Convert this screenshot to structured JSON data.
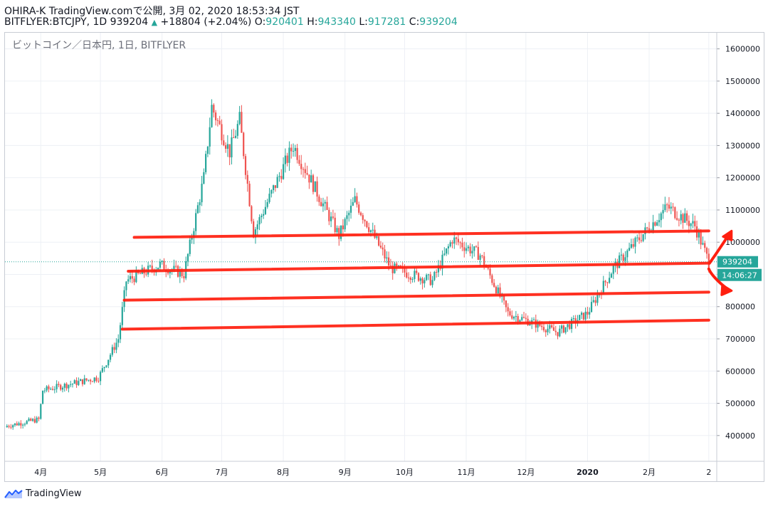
{
  "header": {
    "line1": "OHIRA-K TradingView.comで公開, 3月 02, 2020 18:53:34 JST",
    "symbol_prefix": "BITFLYER:BTCJPY, 1D 939204",
    "change_arrow": "▲",
    "change": "+18804 (+2.04%)",
    "o_label": "O:",
    "o_value": "920401",
    "h_label": "H:",
    "h_value": "943340",
    "l_label": "L:",
    "l_value": "917281",
    "c_label": "C:",
    "c_value": "939204"
  },
  "chart_title": "ビットコイン／日本円, 1日, BITFLYER",
  "price_badge": "939204",
  "time_badge": "14:06:27",
  "logo_text": "TradingView",
  "colors": {
    "up": "#26a69a",
    "down": "#ef5350",
    "trendline": "#ff1f0f",
    "grid": "#edf0f5",
    "price_line": "#26a69a"
  },
  "chart_data": {
    "type": "candlestick",
    "x_tick_labels": [
      "4月",
      "5月",
      "6月",
      "7月",
      "8月",
      "9月",
      "10月",
      "11月",
      "12月",
      "2020",
      "2月",
      "2"
    ],
    "y_tick_labels": [
      "1600000",
      "1500000",
      "1400000",
      "1300000",
      "1200000",
      "1100000",
      "1000000",
      "900000",
      "800000",
      "700000",
      "600000",
      "500000",
      "400000"
    ],
    "ylim": [
      320000,
      1650000
    ],
    "last_close": 939204,
    "series": [
      {
        "date": "2019-03-15",
        "close": 430000
      },
      {
        "date": "2019-03-31",
        "close": 450000
      },
      {
        "date": "2019-04-02",
        "close": 540000
      },
      {
        "date": "2019-04-30",
        "close": 580000
      },
      {
        "date": "2019-05-10",
        "close": 700000
      },
      {
        "date": "2019-05-14",
        "close": 880000
      },
      {
        "date": "2019-05-31",
        "close": 930000
      },
      {
        "date": "2019-06-12",
        "close": 900000
      },
      {
        "date": "2019-06-22",
        "close": 1200000
      },
      {
        "date": "2019-06-26",
        "close": 1420000
      },
      {
        "date": "2019-07-05",
        "close": 1280000
      },
      {
        "date": "2019-07-10",
        "close": 1380000
      },
      {
        "date": "2019-07-17",
        "close": 1030000
      },
      {
        "date": "2019-08-06",
        "close": 1300000
      },
      {
        "date": "2019-08-29",
        "close": 1020000
      },
      {
        "date": "2019-09-06",
        "close": 1130000
      },
      {
        "date": "2019-09-24",
        "close": 920000
      },
      {
        "date": "2019-10-15",
        "close": 880000
      },
      {
        "date": "2019-10-25",
        "close": 1010000
      },
      {
        "date": "2019-11-08",
        "close": 960000
      },
      {
        "date": "2019-11-22",
        "close": 780000
      },
      {
        "date": "2019-12-17",
        "close": 720000
      },
      {
        "date": "2020-01-01",
        "close": 780000
      },
      {
        "date": "2020-01-14",
        "close": 920000
      },
      {
        "date": "2020-02-10",
        "close": 1110000
      },
      {
        "date": "2020-02-24",
        "close": 1050000
      },
      {
        "date": "2020-03-02",
        "close": 939204
      }
    ],
    "trendlines": [
      {
        "from": {
          "date": "2019-05-18",
          "price": 1015000
        },
        "to": {
          "date": "2020-03-02",
          "price": 1035000
        }
      },
      {
        "from": {
          "date": "2019-05-15",
          "price": 910000
        },
        "to": {
          "date": "2020-03-02",
          "price": 935000
        }
      },
      {
        "from": {
          "date": "2019-05-13",
          "price": 820000
        },
        "to": {
          "date": "2020-03-02",
          "price": 845000
        }
      },
      {
        "from": {
          "date": "2019-05-12",
          "price": 730000
        },
        "to": {
          "date": "2020-03-02",
          "price": 758000
        }
      }
    ],
    "arrows": [
      "up",
      "down"
    ],
    "grid": true
  }
}
